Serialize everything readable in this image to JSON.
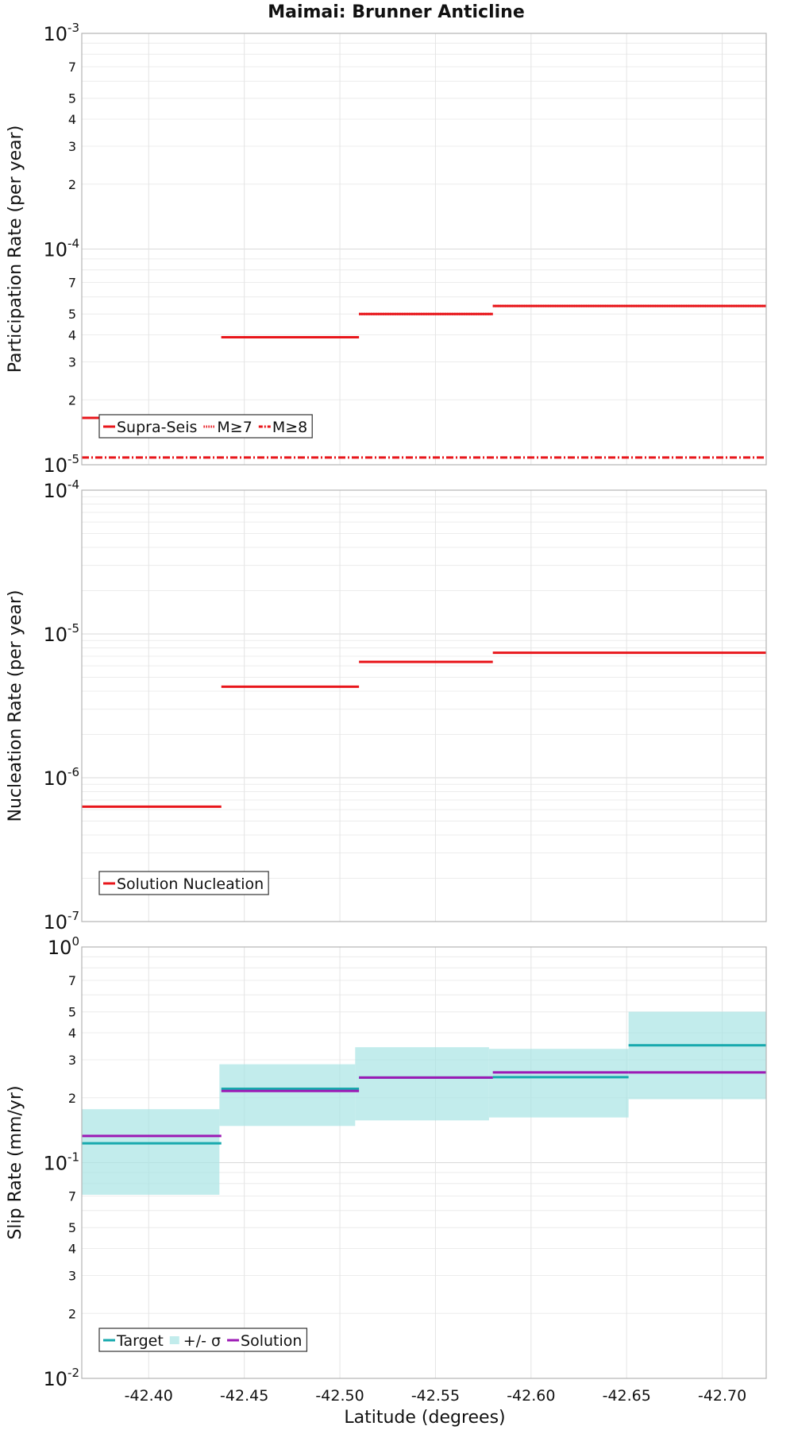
{
  "figure": {
    "title": "Maimai: Brunner Anticline",
    "xlabel": "Latitude (degrees)"
  },
  "chart_data": [
    {
      "type": "line",
      "title": "Maimai: Brunner Anticline",
      "xlabel": "Latitude (degrees)",
      "ylabel": "Participation Rate (per year)",
      "xlim": [
        -42.365,
        -42.723
      ],
      "ylim": [
        1e-05,
        0.001
      ],
      "yscale": "log",
      "grid": true,
      "legend": "bottom-left",
      "series": [
        {
          "name": "Supra-Seis",
          "color": "#e8161b",
          "style": "solid",
          "segments": [
            {
              "x0": -42.365,
              "x1": -42.438,
              "y": 1.65e-05
            },
            {
              "x0": -42.438,
              "x1": -42.51,
              "y": 3.9e-05
            },
            {
              "x0": -42.51,
              "x1": -42.58,
              "y": 5e-05
            },
            {
              "x0": -42.58,
              "x1": -42.723,
              "y": 5.45e-05
            }
          ]
        },
        {
          "name": "M≥7",
          "color": "#e8161b",
          "style": "dotted",
          "segments": [
            {
              "x0": -42.365,
              "x1": -42.438,
              "y": 1.65e-05
            },
            {
              "x0": -42.438,
              "x1": -42.51,
              "y": 3.9e-05
            },
            {
              "x0": -42.51,
              "x1": -42.58,
              "y": 5e-05
            },
            {
              "x0": -42.58,
              "x1": -42.723,
              "y": 5.45e-05
            }
          ]
        },
        {
          "name": "M≥8",
          "color": "#e8161b",
          "style": "dashdot",
          "segments": [
            {
              "x0": -42.365,
              "x1": -42.723,
              "y": 1.08e-05
            }
          ]
        }
      ]
    },
    {
      "type": "line",
      "ylabel": "Nucleation Rate (per year)",
      "xlim": [
        -42.365,
        -42.723
      ],
      "ylim": [
        1e-07,
        0.0001
      ],
      "yscale": "log",
      "grid": true,
      "legend": "bottom-left",
      "series": [
        {
          "name": "Solution Nucleation",
          "color": "#e8161b",
          "style": "solid",
          "segments": [
            {
              "x0": -42.365,
              "x1": -42.438,
              "y": 6.3e-07
            },
            {
              "x0": -42.438,
              "x1": -42.51,
              "y": 4.3e-06
            },
            {
              "x0": -42.51,
              "x1": -42.58,
              "y": 6.4e-06
            },
            {
              "x0": -42.58,
              "x1": -42.723,
              "y": 7.4e-06
            }
          ]
        }
      ]
    },
    {
      "type": "line",
      "ylabel": "Slip Rate (mm/yr)",
      "xlim": [
        -42.365,
        -42.723
      ],
      "ylim": [
        0.01,
        1
      ],
      "yscale": "log",
      "grid": true,
      "legend": "bottom-left",
      "series": [
        {
          "name": "+/- σ",
          "color": "#a8e4e4",
          "style": "band",
          "segments": [
            {
              "x0": -42.365,
              "x1": -42.437,
              "y0": 0.071,
              "y1": 0.177
            },
            {
              "x0": -42.437,
              "x1": -42.508,
              "y0": 0.148,
              "y1": 0.286
            },
            {
              "x0": -42.508,
              "x1": -42.578,
              "y0": 0.157,
              "y1": 0.343
            },
            {
              "x0": -42.578,
              "x1": -42.651,
              "y0": 0.162,
              "y1": 0.337
            },
            {
              "x0": -42.651,
              "x1": -42.723,
              "y0": 0.197,
              "y1": 0.501
            }
          ]
        },
        {
          "name": "Target",
          "color": "#17a9ad",
          "style": "solid",
          "segments": [
            {
              "x0": -42.365,
              "x1": -42.438,
              "y": 0.123
            },
            {
              "x0": -42.438,
              "x1": -42.51,
              "y": 0.22
            },
            {
              "x0": -42.51,
              "x1": -42.58,
              "y": 0.248
            },
            {
              "x0": -42.58,
              "x1": -42.651,
              "y": 0.249
            },
            {
              "x0": -42.651,
              "x1": -42.723,
              "y": 0.35
            }
          ]
        },
        {
          "name": "Solution",
          "color": "#9c1ab5",
          "style": "solid",
          "segments": [
            {
              "x0": -42.365,
              "x1": -42.438,
              "y": 0.133
            },
            {
              "x0": -42.438,
              "x1": -42.51,
              "y": 0.215
            },
            {
              "x0": -42.51,
              "x1": -42.58,
              "y": 0.248
            },
            {
              "x0": -42.58,
              "x1": -42.651,
              "y": 0.262
            },
            {
              "x0": -42.651,
              "x1": -42.723,
              "y": 0.262
            }
          ]
        }
      ]
    }
  ],
  "x_ticks": [
    "-42.40",
    "-42.45",
    "-42.50",
    "-42.55",
    "-42.60",
    "-42.65",
    "-42.70"
  ],
  "x_tick_values": [
    -42.4,
    -42.45,
    -42.5,
    -42.55,
    -42.6,
    -42.65,
    -42.7
  ],
  "panel1_yticks": [
    {
      "v": 0.001,
      "base": "10",
      "exp": "-3"
    },
    {
      "v": 0.0007,
      "label": "7"
    },
    {
      "v": 0.0005,
      "label": "5"
    },
    {
      "v": 0.0004,
      "label": "4"
    },
    {
      "v": 0.0003,
      "label": "3"
    },
    {
      "v": 0.0002,
      "label": "2"
    },
    {
      "v": 0.0001,
      "base": "10",
      "exp": "-4"
    },
    {
      "v": 7e-05,
      "label": "7"
    },
    {
      "v": 5e-05,
      "label": "5"
    },
    {
      "v": 4e-05,
      "label": "4"
    },
    {
      "v": 3e-05,
      "label": "3"
    },
    {
      "v": 2e-05,
      "label": "2"
    },
    {
      "v": 1e-05,
      "base": "10",
      "exp": "-5"
    }
  ],
  "panel2_yticks": [
    {
      "v": 0.0001,
      "base": "10",
      "exp": "-4"
    },
    {
      "v": 1e-05,
      "base": "10",
      "exp": "-5"
    },
    {
      "v": 1e-06,
      "base": "10",
      "exp": "-6"
    },
    {
      "v": 1e-07,
      "base": "10",
      "exp": "-7"
    }
  ],
  "panel3_yticks": [
    {
      "v": 1,
      "base": "10",
      "exp": "0"
    },
    {
      "v": 0.7,
      "label": "7"
    },
    {
      "v": 0.5,
      "label": "5"
    },
    {
      "v": 0.4,
      "label": "4"
    },
    {
      "v": 0.3,
      "label": "3"
    },
    {
      "v": 0.2,
      "label": "2"
    },
    {
      "v": 0.1,
      "base": "10",
      "exp": "-1"
    },
    {
      "v": 0.07,
      "label": "7"
    },
    {
      "v": 0.05,
      "label": "5"
    },
    {
      "v": 0.04,
      "label": "4"
    },
    {
      "v": 0.03,
      "label": "3"
    },
    {
      "v": 0.02,
      "label": "2"
    },
    {
      "v": 0.01,
      "base": "10",
      "exp": "-2"
    }
  ]
}
